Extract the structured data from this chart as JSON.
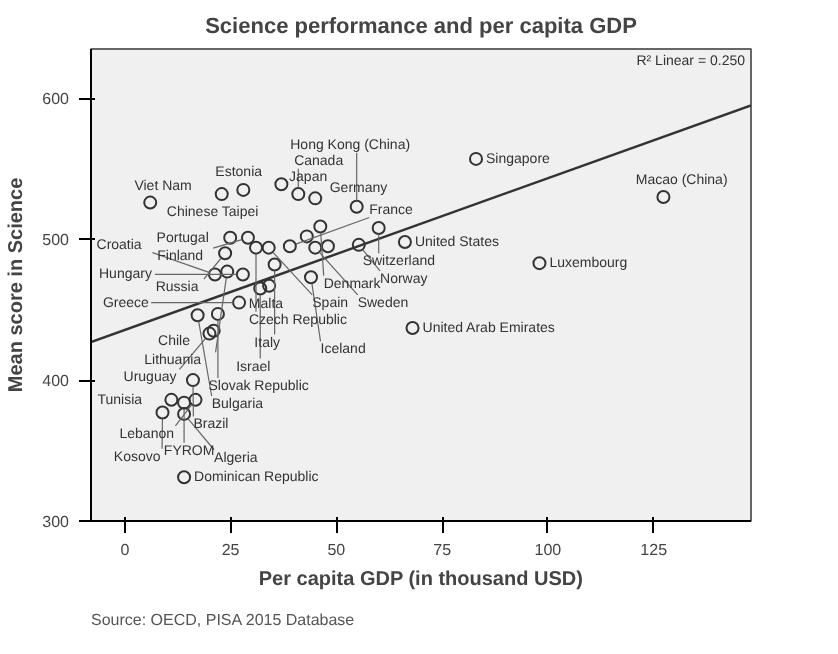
{
  "chart_data": {
    "type": "scatter",
    "title": "Science performance and per capita GDP",
    "xlabel": "Per capita GDP (in thousand USD)",
    "ylabel": "Mean score in Science",
    "xlim": [
      -8,
      148
    ],
    "ylim": [
      300,
      635
    ],
    "xticks": [
      0,
      25,
      50,
      75,
      100,
      125
    ],
    "yticks": [
      300,
      400,
      500,
      600
    ],
    "grid": false,
    "series": [
      {
        "marker": "circle",
        "color": "#333333",
        "x": [
          83,
          37,
          28,
          22.9,
          41,
          45,
          6,
          54.8,
          127.3,
          98,
          68,
          46.2,
          60,
          66.2,
          24.9,
          29.1,
          31,
          23.7,
          35.4,
          34,
          39,
          45,
          44,
          21.3,
          24.2,
          27.9,
          32,
          34.1,
          27,
          22,
          17.2,
          21,
          20,
          16.1,
          11,
          16.7,
          14,
          8.9,
          14,
          14,
          48,
          43,
          55.3
        ],
        "values": [
          557,
          539,
          535,
          532,
          532,
          529,
          526,
          523,
          530,
          483,
          437,
          509,
          508,
          498,
          501,
          501,
          494,
          490,
          482,
          494,
          495,
          494,
          473,
          475,
          477,
          475,
          465,
          467,
          455,
          447,
          446,
          435,
          433,
          400,
          386,
          386,
          384,
          377,
          376,
          331,
          495,
          502,
          496
        ]
      },
      {
        "type": "line",
        "color": "#333333",
        "x": [
          -8,
          148
        ],
        "values": [
          427,
          595
        ]
      }
    ],
    "annotations": [
      "R² Linear = 0.250",
      "Source: OECD, PISA 2015 Database",
      {
        "text": "Singapore",
        "x": 83,
        "y": 557
      },
      {
        "text": "Japan",
        "x": 37,
        "y": 539
      },
      {
        "text": "Estonia",
        "x": 28,
        "y": 535
      },
      {
        "text": "Chinese Taipei",
        "x": 22.9,
        "y": 532
      },
      {
        "text": "Canada",
        "x": 41,
        "y": 532
      },
      {
        "text": "Germany",
        "x": 45,
        "y": 529
      },
      {
        "text": "Viet Nam",
        "x": 6,
        "y": 526
      },
      {
        "text": "Hong Kong (China)",
        "x": 54.8,
        "y": 523
      },
      {
        "text": "Macao (China)",
        "x": 127.3,
        "y": 530
      },
      {
        "text": "Luxembourg",
        "x": 98,
        "y": 483
      },
      {
        "text": "United Arab Emirates",
        "x": 68,
        "y": 437
      },
      {
        "text": "Denmark",
        "x": 46.2,
        "y": 509
      },
      {
        "text": "Switzerland",
        "x": 60,
        "y": 508
      },
      {
        "text": "United States",
        "x": 66.2,
        "y": 498
      },
      {
        "text": "Portugal",
        "x": 24.9,
        "y": 501
      },
      {
        "text": "Finland",
        "x": 29.1,
        "y": 501
      },
      {
        "text": "Czech Republic",
        "x": 31,
        "y": 494
      },
      {
        "text": "Russia",
        "x": 23.7,
        "y": 490
      },
      {
        "text": "Italy",
        "x": 35.4,
        "y": 482
      },
      {
        "text": "Spain",
        "x": 34,
        "y": 494
      },
      {
        "text": "France",
        "x": 39,
        "y": 495
      },
      {
        "text": "Sweden",
        "x": 45,
        "y": 494
      },
      {
        "text": "Norway",
        "x": 55.3,
        "y": 496
      },
      {
        "text": "Iceland",
        "x": 44,
        "y": 473
      },
      {
        "text": "Croatia",
        "x": 21.3,
        "y": 475
      },
      {
        "text": "Lithuania",
        "x": 24.2,
        "y": 477
      },
      {
        "text": "Hungary",
        "x": 27.9,
        "y": 475
      },
      {
        "text": "Israel",
        "x": 32,
        "y": 465
      },
      {
        "text": "Malta",
        "x": 34.1,
        "y": 467
      },
      {
        "text": "Greece",
        "x": 27,
        "y": 455
      },
      {
        "text": "Slovak Republic",
        "x": 22,
        "y": 447
      },
      {
        "text": "Bulgaria",
        "x": 17.2,
        "y": 446
      },
      {
        "text": "Chile",
        "x": 21,
        "y": 435
      },
      {
        "text": "Uruguay",
        "x": 20,
        "y": 433
      },
      {
        "text": "Brazil",
        "x": 16.1,
        "y": 400
      },
      {
        "text": "Tunisia",
        "x": 11,
        "y": 386
      },
      {
        "text": "Lebanon",
        "x": 16.7,
        "y": 386
      },
      {
        "text": "FYROM",
        "x": 14,
        "y": 384
      },
      {
        "text": "Kosovo",
        "x": 8.9,
        "y": 377
      },
      {
        "text": "Algeria",
        "x": 14,
        "y": 376
      },
      {
        "text": "Dominican Republic",
        "x": 14,
        "y": 331
      }
    ]
  }
}
